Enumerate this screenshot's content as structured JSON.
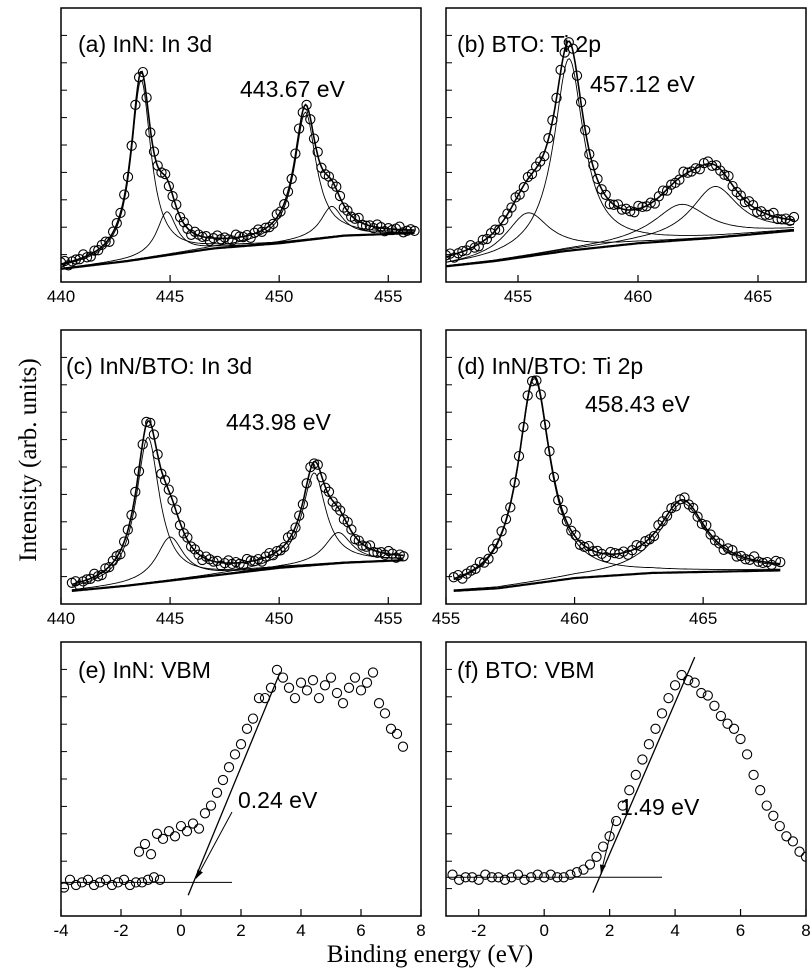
{
  "figure": {
    "ylabel": "Intensity (arb. units)",
    "xlabel": "Binding energy (eV)"
  },
  "chart_data": [
    {
      "id": "a",
      "type": "scatter",
      "title": "(a) InN: In 3d",
      "annotation": "443.67 eV",
      "xlim": [
        440,
        456.5
      ],
      "ylim": [
        0,
        1
      ],
      "xticks": [
        440,
        445,
        450,
        455
      ],
      "peaks": [
        {
          "center": 443.67,
          "height": 0.7,
          "width": 0.55
        },
        {
          "center": 444.85,
          "height": 0.17,
          "width": 0.55
        },
        {
          "center": 451.2,
          "height": 0.5,
          "width": 0.6
        },
        {
          "center": 452.4,
          "height": 0.12,
          "width": 0.6
        }
      ],
      "background": [
        [
          440,
          0.02
        ],
        [
          443,
          0.05
        ],
        [
          447,
          0.1
        ],
        [
          450,
          0.12
        ],
        [
          453,
          0.15
        ],
        [
          456.2,
          0.16
        ]
      ],
      "x_range": [
        440,
        456.2
      ]
    },
    {
      "id": "b",
      "type": "scatter",
      "title": "(b) BTO: Ti 2p",
      "annotation": "457.12 eV",
      "xlim": [
        452,
        467
      ],
      "ylim": [
        0,
        1
      ],
      "xticks": [
        455,
        460,
        465
      ],
      "peaks": [
        {
          "center": 457.12,
          "height": 0.75,
          "width": 0.75
        },
        {
          "center": 455.4,
          "height": 0.17,
          "width": 1.1
        },
        {
          "center": 461.8,
          "height": 0.14,
          "width": 1.4
        },
        {
          "center": 463.2,
          "height": 0.2,
          "width": 1.2
        }
      ],
      "background": [
        [
          452,
          0.03
        ],
        [
          454,
          0.05
        ],
        [
          457,
          0.09
        ],
        [
          460,
          0.12
        ],
        [
          463,
          0.14
        ],
        [
          466.5,
          0.17
        ]
      ],
      "x_range": [
        452,
        466.5
      ]
    },
    {
      "id": "c",
      "type": "scatter",
      "title": "(c) InN/BTO: In 3d",
      "annotation": "443.98 eV",
      "xlim": [
        440,
        456.5
      ],
      "ylim": [
        0,
        1
      ],
      "xticks": [
        440,
        445,
        450,
        455
      ],
      "peaks": [
        {
          "center": 443.98,
          "height": 0.57,
          "width": 0.65
        },
        {
          "center": 445.0,
          "height": 0.17,
          "width": 0.75
        },
        {
          "center": 451.6,
          "height": 0.36,
          "width": 0.65
        },
        {
          "center": 452.7,
          "height": 0.12,
          "width": 0.75
        }
      ],
      "background": [
        [
          440.5,
          0.02
        ],
        [
          443,
          0.04
        ],
        [
          447,
          0.08
        ],
        [
          450,
          0.11
        ],
        [
          453,
          0.13
        ],
        [
          455.7,
          0.14
        ]
      ],
      "x_range": [
        440.5,
        455.7
      ]
    },
    {
      "id": "d",
      "type": "scatter",
      "title": "(d) InN/BTO: Ti 2p",
      "annotation": "458.43 eV",
      "xlim": [
        455,
        469
      ],
      "ylim": [
        0,
        1
      ],
      "xticks": [
        455,
        460,
        465
      ],
      "peaks": [
        {
          "center": 458.43,
          "height": 0.8,
          "width": 0.75
        },
        {
          "center": 464.2,
          "height": 0.27,
          "width": 1.1
        }
      ],
      "background": [
        [
          455.3,
          0.02
        ],
        [
          457,
          0.03
        ],
        [
          460,
          0.07
        ],
        [
          463,
          0.09
        ],
        [
          468,
          0.1
        ]
      ],
      "x_range": [
        455.3,
        468
      ]
    },
    {
      "id": "e",
      "type": "scatter",
      "title": "(e) InN: VBM",
      "annotation": "0.24 eV",
      "xlim": [
        -4,
        8
      ],
      "ylim": [
        0,
        1
      ],
      "xticks": [
        -4,
        -2,
        0,
        2,
        4,
        6,
        8
      ],
      "baseline_y": 0.1,
      "points": [
        [
          -3.9,
          0.08
        ],
        [
          -3.7,
          0.11
        ],
        [
          -3.5,
          0.09
        ],
        [
          -3.3,
          0.1
        ],
        [
          -3.1,
          0.11
        ],
        [
          -2.9,
          0.09
        ],
        [
          -2.7,
          0.1
        ],
        [
          -2.5,
          0.11
        ],
        [
          -2.3,
          0.09
        ],
        [
          -2.1,
          0.1
        ],
        [
          -1.9,
          0.11
        ],
        [
          -1.7,
          0.09
        ],
        [
          -1.5,
          0.1
        ],
        [
          -1.3,
          0.1
        ],
        [
          -1.1,
          0.11
        ],
        [
          -0.9,
          0.12
        ],
        [
          -0.7,
          0.11
        ],
        [
          -1.4,
          0.22
        ],
        [
          -1.2,
          0.25
        ],
        [
          -1.0,
          0.21
        ],
        [
          -0.8,
          0.29
        ],
        [
          -0.6,
          0.27
        ],
        [
          -0.4,
          0.3
        ],
        [
          -0.2,
          0.28
        ],
        [
          0.0,
          0.32
        ],
        [
          0.2,
          0.3
        ],
        [
          0.4,
          0.33
        ],
        [
          0.6,
          0.31
        ],
        [
          0.8,
          0.37
        ],
        [
          1.0,
          0.4
        ],
        [
          1.2,
          0.45
        ],
        [
          1.4,
          0.5
        ],
        [
          1.6,
          0.55
        ],
        [
          1.8,
          0.6
        ],
        [
          2.0,
          0.64
        ],
        [
          2.2,
          0.7
        ],
        [
          2.4,
          0.74
        ],
        [
          2.6,
          0.82
        ],
        [
          2.8,
          0.82
        ],
        [
          3.0,
          0.86
        ],
        [
          3.2,
          0.93
        ],
        [
          3.4,
          0.9
        ],
        [
          3.6,
          0.86
        ],
        [
          3.8,
          0.82
        ],
        [
          4.0,
          0.88
        ],
        [
          4.2,
          0.85
        ],
        [
          4.4,
          0.89
        ],
        [
          4.6,
          0.82
        ],
        [
          4.8,
          0.87
        ],
        [
          5.0,
          0.9
        ],
        [
          5.2,
          0.84
        ],
        [
          5.4,
          0.8
        ],
        [
          5.6,
          0.86
        ],
        [
          5.8,
          0.9
        ],
        [
          6.0,
          0.85
        ],
        [
          6.2,
          0.88
        ],
        [
          6.4,
          0.92
        ],
        [
          6.6,
          0.8
        ],
        [
          6.8,
          0.76
        ],
        [
          7.0,
          0.7
        ],
        [
          7.2,
          0.68
        ],
        [
          7.4,
          0.63
        ]
      ],
      "fit_line": [
        [
          0.24,
          0.05
        ],
        [
          3.3,
          0.92
        ]
      ]
    },
    {
      "id": "f",
      "type": "scatter",
      "title": "(f) BTO: VBM",
      "annotation": "1.49 eV",
      "xlim": [
        -3,
        8
      ],
      "ylim": [
        0,
        1
      ],
      "xticks": [
        -2,
        0,
        2,
        4,
        6,
        8
      ],
      "baseline_y": 0.12,
      "points": [
        [
          -2.8,
          0.13
        ],
        [
          -2.6,
          0.11
        ],
        [
          -2.4,
          0.12
        ],
        [
          -2.2,
          0.12
        ],
        [
          -2.0,
          0.11
        ],
        [
          -1.8,
          0.13
        ],
        [
          -1.6,
          0.12
        ],
        [
          -1.4,
          0.12
        ],
        [
          -1.2,
          0.11
        ],
        [
          -1.0,
          0.12
        ],
        [
          -0.8,
          0.13
        ],
        [
          -0.6,
          0.11
        ],
        [
          -0.4,
          0.12
        ],
        [
          -0.2,
          0.13
        ],
        [
          0.0,
          0.12
        ],
        [
          0.2,
          0.13
        ],
        [
          0.4,
          0.12
        ],
        [
          0.6,
          0.12
        ],
        [
          0.8,
          0.13
        ],
        [
          1.0,
          0.14
        ],
        [
          1.2,
          0.15
        ],
        [
          1.4,
          0.17
        ],
        [
          1.6,
          0.2
        ],
        [
          1.8,
          0.24
        ],
        [
          2.0,
          0.28
        ],
        [
          2.2,
          0.34
        ],
        [
          2.4,
          0.4
        ],
        [
          2.6,
          0.46
        ],
        [
          2.8,
          0.52
        ],
        [
          3.0,
          0.58
        ],
        [
          3.2,
          0.64
        ],
        [
          3.4,
          0.7
        ],
        [
          3.6,
          0.76
        ],
        [
          3.8,
          0.82
        ],
        [
          4.0,
          0.87
        ],
        [
          4.2,
          0.91
        ],
        [
          4.4,
          0.89
        ],
        [
          4.6,
          0.88
        ],
        [
          4.8,
          0.84
        ],
        [
          5.0,
          0.83
        ],
        [
          5.2,
          0.79
        ],
        [
          5.4,
          0.75
        ],
        [
          5.6,
          0.72
        ],
        [
          5.8,
          0.7
        ],
        [
          6.0,
          0.66
        ],
        [
          6.2,
          0.6
        ],
        [
          6.4,
          0.52
        ],
        [
          6.6,
          0.46
        ],
        [
          6.8,
          0.4
        ],
        [
          7.0,
          0.36
        ],
        [
          7.2,
          0.32
        ],
        [
          7.4,
          0.28
        ],
        [
          7.6,
          0.26
        ],
        [
          7.8,
          0.22
        ],
        [
          8.0,
          0.2
        ]
      ],
      "fit_line": [
        [
          1.49,
          0.06
        ],
        [
          4.6,
          0.98
        ]
      ]
    }
  ]
}
